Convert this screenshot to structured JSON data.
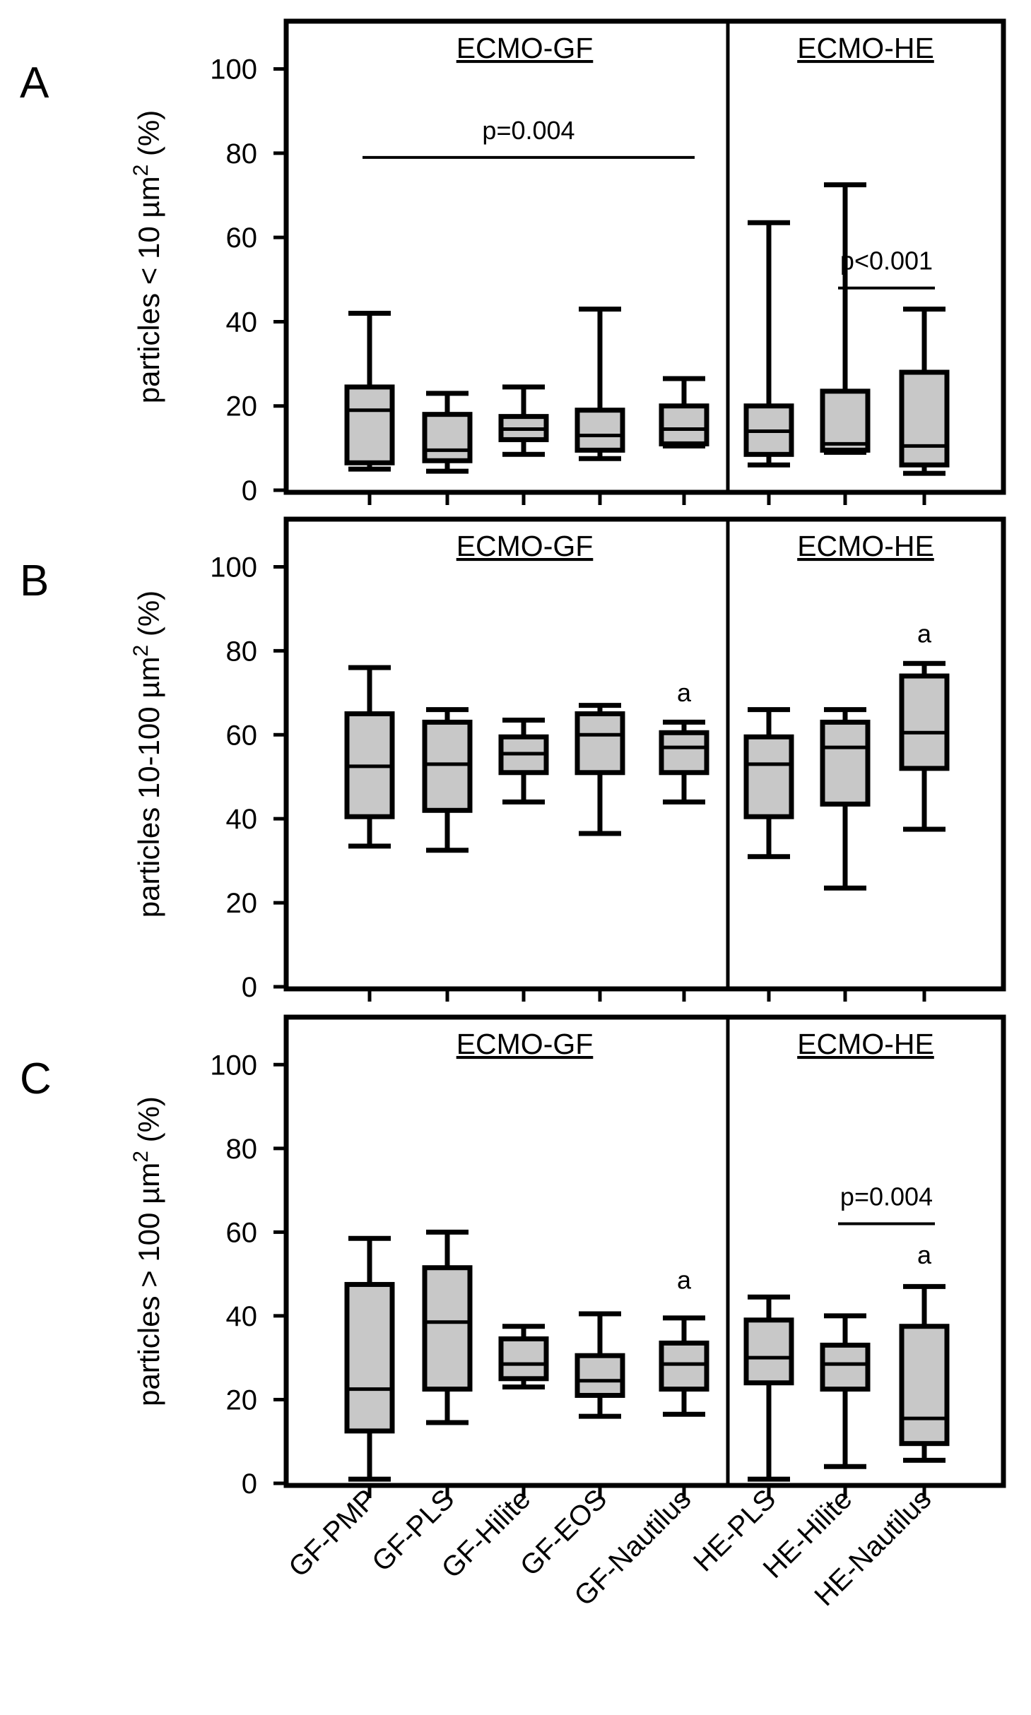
{
  "chart_data": [
    {
      "type": "box",
      "panel": "A",
      "ylabel": "particles < 10 µm",
      "ylabel_sup": "2",
      "ylabel_suffix": " (%)",
      "ylim": [
        0,
        110
      ],
      "yticks": [
        0,
        20,
        40,
        60,
        80,
        100
      ],
      "groups": [
        {
          "label": "ECMO-GF",
          "count": 5
        },
        {
          "label": "ECMO-HE",
          "count": 3
        }
      ],
      "boxes": [
        {
          "name": "GF-PMP",
          "min": 5,
          "q1": 6.5,
          "median": 19,
          "q3": 24.5,
          "max": 42
        },
        {
          "name": "GF-PLS",
          "min": 4.5,
          "q1": 7,
          "median": 9.5,
          "q3": 18,
          "max": 23
        },
        {
          "name": "GF-Hilite",
          "min": 8.5,
          "q1": 12,
          "median": 14.5,
          "q3": 17.5,
          "max": 24.5
        },
        {
          "name": "GF-EOS",
          "min": 7.5,
          "q1": 9.5,
          "median": 13,
          "q3": 19,
          "max": 43
        },
        {
          "name": "GF-Nautilus",
          "min": 10.5,
          "q1": 11,
          "median": 14.5,
          "q3": 20,
          "max": 26.5
        },
        {
          "name": "HE-PLS",
          "min": 6,
          "q1": 8.5,
          "median": 14,
          "q3": 20,
          "max": 63.5
        },
        {
          "name": "HE-Hilite",
          "min": 9,
          "q1": 9.5,
          "median": 11,
          "q3": 23.5,
          "max": 72.5
        },
        {
          "name": "HE-Nautilus",
          "min": 4,
          "q1": 6,
          "median": 10.5,
          "q3": 28,
          "max": 43
        }
      ],
      "annotations": [
        {
          "text": "p=0.004",
          "from": 0,
          "to": 4,
          "y": 79
        },
        {
          "text": "p<0.001",
          "from": 6,
          "to": 7,
          "y": 48
        }
      ],
      "letters": []
    },
    {
      "type": "box",
      "panel": "B",
      "ylabel": "particles 10-100 µm",
      "ylabel_sup": "2",
      "ylabel_suffix": " (%)",
      "ylim": [
        0,
        110
      ],
      "yticks": [
        0,
        20,
        40,
        60,
        80,
        100
      ],
      "groups": [
        {
          "label": "ECMO-GF",
          "count": 5
        },
        {
          "label": "ECMO-HE",
          "count": 3
        }
      ],
      "boxes": [
        {
          "name": "GF-PMP",
          "min": 33.5,
          "q1": 40.5,
          "median": 52.5,
          "q3": 65,
          "max": 76
        },
        {
          "name": "GF-PLS",
          "min": 32.5,
          "q1": 42,
          "median": 53,
          "q3": 63,
          "max": 66
        },
        {
          "name": "GF-Hilite",
          "min": 44,
          "q1": 51,
          "median": 55.5,
          "q3": 59.5,
          "max": 63.5
        },
        {
          "name": "GF-EOS",
          "min": 36.5,
          "q1": 51,
          "median": 60,
          "q3": 65,
          "max": 67
        },
        {
          "name": "GF-Nautilus",
          "min": 44,
          "q1": 51,
          "median": 57,
          "q3": 60.5,
          "max": 63
        },
        {
          "name": "HE-PLS",
          "min": 31,
          "q1": 40.5,
          "median": 53,
          "q3": 59.5,
          "max": 66
        },
        {
          "name": "HE-Hilite",
          "min": 23.5,
          "q1": 43.5,
          "median": 57,
          "q3": 63,
          "max": 66
        },
        {
          "name": "HE-Nautilus",
          "min": 37.5,
          "q1": 52,
          "median": 60.5,
          "q3": 74,
          "max": 77
        }
      ],
      "annotations": [],
      "letters": [
        {
          "text": "a",
          "box": 4,
          "y": 70
        },
        {
          "text": "a",
          "box": 7,
          "y": 84
        }
      ]
    },
    {
      "type": "box",
      "panel": "C",
      "ylabel": "particles > 100 µm",
      "ylabel_sup": "2",
      "ylabel_suffix": " (%)",
      "ylim": [
        0,
        110
      ],
      "yticks": [
        0,
        20,
        40,
        60,
        80,
        100
      ],
      "groups": [
        {
          "label": "ECMO-GF",
          "count": 5
        },
        {
          "label": "ECMO-HE",
          "count": 3
        }
      ],
      "boxes": [
        {
          "name": "GF-PMP",
          "min": 1,
          "q1": 12.5,
          "median": 22.5,
          "q3": 47.5,
          "max": 58.5
        },
        {
          "name": "GF-PLS",
          "min": 14.5,
          "q1": 22.5,
          "median": 38.5,
          "q3": 51.5,
          "max": 60
        },
        {
          "name": "GF-Hilite",
          "min": 23,
          "q1": 25,
          "median": 28.5,
          "q3": 34.5,
          "max": 37.5
        },
        {
          "name": "GF-EOS",
          "min": 16,
          "q1": 21,
          "median": 24.5,
          "q3": 30.5,
          "max": 40.5
        },
        {
          "name": "GF-Nautilus",
          "min": 16.5,
          "q1": 22.5,
          "median": 28.5,
          "q3": 33.5,
          "max": 39.5
        },
        {
          "name": "HE-PLS",
          "min": 1,
          "q1": 24,
          "median": 30,
          "q3": 39,
          "max": 44.5
        },
        {
          "name": "HE-Hilite",
          "min": 4,
          "q1": 22.5,
          "median": 28.5,
          "q3": 33,
          "max": 40
        },
        {
          "name": "HE-Nautilus",
          "min": 5.5,
          "q1": 9.5,
          "median": 15.5,
          "q3": 37.5,
          "max": 47
        }
      ],
      "annotations": [
        {
          "text": "p=0.004",
          "from": 6,
          "to": 7,
          "y": 62
        }
      ],
      "letters": [
        {
          "text": "a",
          "box": 4,
          "y": 48.5
        },
        {
          "text": "a",
          "box": 7,
          "y": 54.5
        }
      ]
    }
  ],
  "x_labels": [
    "GF-PMP",
    "GF-PLS",
    "GF-Hilite",
    "GF-EOS",
    "GF-Nautilus",
    "HE-PLS",
    "HE-Hilite",
    "HE-Nautilus"
  ],
  "colors": {
    "box_fill": "#c8c8c8",
    "stroke": "#000000",
    "background": "#ffffff"
  }
}
